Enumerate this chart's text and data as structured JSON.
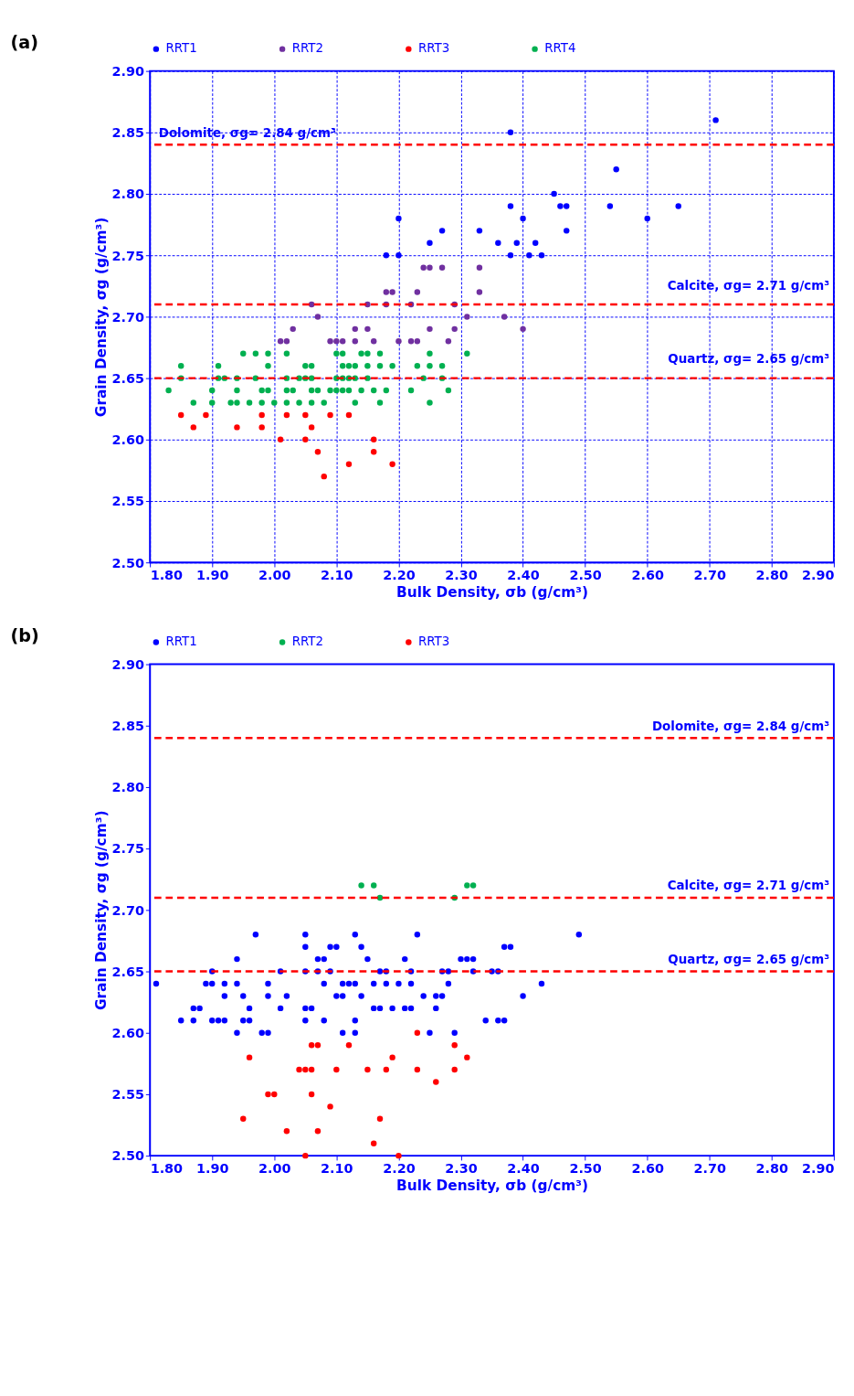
{
  "chart_data": [
    {
      "type": "scatter",
      "title": "(a)",
      "xlabel": "Bulk Density, σb (g/cm³)",
      "ylabel": "Grain Density, σg (g/cm³)",
      "legend": "top",
      "grid": true,
      "marker": "circle",
      "xlim": [
        1.8,
        2.9
      ],
      "ylim": [
        2.5,
        2.9
      ],
      "xticks": [
        {
          "value": 1.8,
          "label": "1.80"
        },
        {
          "value": 1.9,
          "label": "1.90"
        },
        {
          "value": 2.0,
          "label": "2.00"
        },
        {
          "value": 2.1,
          "label": "2.10"
        },
        {
          "value": 2.2,
          "label": "2.20"
        },
        {
          "value": 2.3,
          "label": "2.30"
        },
        {
          "value": 2.4,
          "label": "2.40"
        },
        {
          "value": 2.5,
          "label": "2.50"
        },
        {
          "value": 2.6,
          "label": "2.60"
        },
        {
          "value": 2.7,
          "label": "2.70"
        },
        {
          "value": 2.8,
          "label": "2.80"
        },
        {
          "value": 2.9,
          "label": "2.90"
        }
      ],
      "yticks": [
        {
          "value": 2.5,
          "label": "2.50"
        },
        2.55,
        {
          "value": 2.6,
          "label": "2.60"
        },
        2.65,
        {
          "value": 2.7,
          "label": "2.70"
        },
        2.75,
        {
          "value": 2.8,
          "label": "2.80"
        },
        2.85,
        {
          "value": 2.9,
          "label": "2.90"
        }
      ],
      "ref_lines": [
        {
          "axis": "y",
          "value": 2.84,
          "label": "Dolomite, σg= 2.84 g/cm³",
          "color": "#ff0000",
          "line_style": "dashed"
        },
        {
          "axis": "y",
          "value": 2.71,
          "label": "Calcite,  σg= 2.71 g/cm³",
          "color": "#ff0000",
          "line_style": "dashed"
        },
        {
          "axis": "y",
          "value": 2.65,
          "label": "Quartz,  σg= 2.65 g/cm³",
          "color": "#ff0000",
          "line_style": "dashed"
        }
      ],
      "series": [
        {
          "name": "RRT1",
          "color": "#0000ff",
          "x": [
            2.71,
            2.38,
            2.55,
            2.45,
            2.46,
            2.47,
            2.54,
            2.65,
            2.38,
            2.2,
            2.4,
            2.6,
            2.27,
            2.33,
            2.47,
            2.25,
            2.36,
            2.39,
            2.42,
            2.18,
            2.2,
            2.38,
            2.41,
            2.43
          ],
          "values": [
            2.86,
            2.85,
            2.82,
            2.8,
            2.79,
            2.79,
            2.79,
            2.79,
            2.79,
            2.78,
            2.78,
            2.78,
            2.77,
            2.77,
            2.77,
            2.76,
            2.76,
            2.76,
            2.76,
            2.75,
            2.75,
            2.75,
            2.75,
            2.75
          ]
        },
        {
          "name": "RRT2",
          "color": "#7030a0",
          "x": [
            2.24,
            2.25,
            2.27,
            2.33,
            2.33,
            2.18,
            2.19,
            2.23,
            2.06,
            2.15,
            2.18,
            2.22,
            2.29,
            2.07,
            2.31,
            2.37,
            2.03,
            2.13,
            2.15,
            2.25,
            2.29,
            2.4,
            2.01,
            2.02,
            2.09,
            2.1,
            2.11,
            2.13,
            2.16,
            2.2,
            2.22,
            2.23,
            2.28
          ],
          "values": [
            2.74,
            2.74,
            2.74,
            2.74,
            2.72,
            2.72,
            2.72,
            2.72,
            2.71,
            2.71,
            2.71,
            2.71,
            2.71,
            2.7,
            2.7,
            2.7,
            2.69,
            2.69,
            2.69,
            2.69,
            2.69,
            2.69,
            2.68,
            2.68,
            2.68,
            2.68,
            2.68,
            2.68,
            2.68,
            2.68,
            2.68,
            2.68,
            2.68
          ]
        },
        {
          "name": "RRT3",
          "color": "#ff0000",
          "x": [
            1.85,
            1.89,
            1.98,
            2.02,
            2.05,
            2.09,
            2.12,
            1.87,
            1.94,
            1.98,
            2.06,
            2.01,
            2.05,
            2.16,
            2.07,
            2.16,
            2.12,
            2.19,
            2.08
          ],
          "values": [
            2.62,
            2.62,
            2.62,
            2.62,
            2.62,
            2.62,
            2.62,
            2.61,
            2.61,
            2.61,
            2.61,
            2.6,
            2.6,
            2.6,
            2.59,
            2.59,
            2.58,
            2.58,
            2.57
          ]
        },
        {
          "name": "RRT4",
          "color": "#00b050",
          "x": [
            1.95,
            1.97,
            1.99,
            2.02,
            2.1,
            2.11,
            2.14,
            2.15,
            2.17,
            2.25,
            2.31,
            1.85,
            1.91,
            1.99,
            2.05,
            2.06,
            2.11,
            2.12,
            2.13,
            2.15,
            2.17,
            2.19,
            2.23,
            2.25,
            2.27,
            1.85,
            1.91,
            1.92,
            1.94,
            1.97,
            2.02,
            2.04,
            2.05,
            2.06,
            2.1,
            2.11,
            2.12,
            2.13,
            2.15,
            2.24,
            2.27,
            1.83,
            1.9,
            1.94,
            1.98,
            1.99,
            2.02,
            2.03,
            2.06,
            2.07,
            2.09,
            2.1,
            2.11,
            2.12,
            2.14,
            2.16,
            2.18,
            2.22,
            2.28,
            1.87,
            1.9,
            1.93,
            1.94,
            1.96,
            1.98,
            2.0,
            2.02,
            2.04,
            2.06,
            2.08,
            2.13,
            2.17,
            2.25
          ],
          "values": [
            2.67,
            2.67,
            2.67,
            2.67,
            2.67,
            2.67,
            2.67,
            2.67,
            2.67,
            2.67,
            2.67,
            2.66,
            2.66,
            2.66,
            2.66,
            2.66,
            2.66,
            2.66,
            2.66,
            2.66,
            2.66,
            2.66,
            2.66,
            2.66,
            2.66,
            2.65,
            2.65,
            2.65,
            2.65,
            2.65,
            2.65,
            2.65,
            2.65,
            2.65,
            2.65,
            2.65,
            2.65,
            2.65,
            2.65,
            2.65,
            2.65,
            2.64,
            2.64,
            2.64,
            2.64,
            2.64,
            2.64,
            2.64,
            2.64,
            2.64,
            2.64,
            2.64,
            2.64,
            2.64,
            2.64,
            2.64,
            2.64,
            2.64,
            2.64,
            2.63,
            2.63,
            2.63,
            2.63,
            2.63,
            2.63,
            2.63,
            2.63,
            2.63,
            2.63,
            2.63,
            2.63,
            2.63,
            2.63
          ]
        }
      ]
    },
    {
      "type": "scatter",
      "title": "(b)",
      "xlabel": "Bulk Density, σb (g/cm³)",
      "ylabel": "Grain Density, σg (g/cm³)",
      "legend": "top",
      "grid": false,
      "marker": "circle",
      "xlim": [
        1.8,
        2.9
      ],
      "ylim": [
        2.5,
        2.9
      ],
      "xticks": [
        {
          "value": 1.8,
          "label": "1.80"
        },
        {
          "value": 1.9,
          "label": "1.90"
        },
        {
          "value": 2.0,
          "label": "2.00"
        },
        {
          "value": 2.1,
          "label": "2.10"
        },
        {
          "value": 2.2,
          "label": "2.20"
        },
        {
          "value": 2.3,
          "label": "2.30"
        },
        {
          "value": 2.4,
          "label": "2.40"
        },
        {
          "value": 2.5,
          "label": "2.50"
        },
        {
          "value": 2.6,
          "label": "2.60"
        },
        {
          "value": 2.7,
          "label": "2.70"
        },
        {
          "value": 2.8,
          "label": "2.80"
        },
        {
          "value": 2.9,
          "label": "2.90"
        }
      ],
      "yticks": [
        {
          "value": 2.5,
          "label": "2.50"
        },
        2.55,
        {
          "value": 2.6,
          "label": "2.60"
        },
        2.65,
        {
          "value": 2.7,
          "label": "2.70"
        },
        2.75,
        {
          "value": 2.8,
          "label": "2.80"
        },
        2.85,
        {
          "value": 2.9,
          "label": "2.90"
        }
      ],
      "ref_lines": [
        {
          "axis": "y",
          "value": 2.84,
          "label": "Dolomite, σg= 2.84 g/cm³",
          "color": "#ff0000",
          "line_style": "dashed"
        },
        {
          "axis": "y",
          "value": 2.71,
          "label": "Calcite,  σg= 2.71 g/cm³",
          "color": "#ff0000",
          "line_style": "dashed"
        },
        {
          "axis": "y",
          "value": 2.65,
          "label": "Quartz,  σg= 2.65 g/cm³",
          "color": "#ff0000",
          "line_style": "dashed"
        }
      ],
      "series": [
        {
          "name": "RRT1",
          "color": "#0000ff",
          "x": [
            1.97,
            2.05,
            2.13,
            2.23,
            2.49,
            2.05,
            2.09,
            2.1,
            2.14,
            2.37,
            2.38,
            1.94,
            2.07,
            2.08,
            2.15,
            2.21,
            2.3,
            2.31,
            2.32,
            1.9,
            2.01,
            2.05,
            2.07,
            2.09,
            2.17,
            2.18,
            2.22,
            2.27,
            2.28,
            2.32,
            2.35,
            2.36,
            1.81,
            1.89,
            1.9,
            1.92,
            1.94,
            1.99,
            2.08,
            2.11,
            2.12,
            2.13,
            2.16,
            2.18,
            2.2,
            2.22,
            2.28,
            2.43,
            1.92,
            1.95,
            1.99,
            2.02,
            2.1,
            2.11,
            2.14,
            2.24,
            2.26,
            2.27,
            2.4,
            1.87,
            1.88,
            1.96,
            2.01,
            2.05,
            2.06,
            2.16,
            2.17,
            2.19,
            2.21,
            2.22,
            2.26,
            1.85,
            1.87,
            1.9,
            1.91,
            1.92,
            1.95,
            1.96,
            2.05,
            2.08,
            2.13,
            2.34,
            2.36,
            2.37,
            1.94,
            1.98,
            1.99,
            2.11,
            2.13,
            2.25,
            2.29
          ],
          "values": [
            2.68,
            2.68,
            2.68,
            2.68,
            2.68,
            2.67,
            2.67,
            2.67,
            2.67,
            2.67,
            2.67,
            2.66,
            2.66,
            2.66,
            2.66,
            2.66,
            2.66,
            2.66,
            2.66,
            2.65,
            2.65,
            2.65,
            2.65,
            2.65,
            2.65,
            2.65,
            2.65,
            2.65,
            2.65,
            2.65,
            2.65,
            2.65,
            2.64,
            2.64,
            2.64,
            2.64,
            2.64,
            2.64,
            2.64,
            2.64,
            2.64,
            2.64,
            2.64,
            2.64,
            2.64,
            2.64,
            2.64,
            2.64,
            2.63,
            2.63,
            2.63,
            2.63,
            2.63,
            2.63,
            2.63,
            2.63,
            2.63,
            2.63,
            2.63,
            2.62,
            2.62,
            2.62,
            2.62,
            2.62,
            2.62,
            2.62,
            2.62,
            2.62,
            2.62,
            2.62,
            2.62,
            2.61,
            2.61,
            2.61,
            2.61,
            2.61,
            2.61,
            2.61,
            2.61,
            2.61,
            2.61,
            2.61,
            2.61,
            2.61,
            2.6,
            2.6,
            2.6,
            2.6,
            2.6,
            2.6,
            2.6
          ]
        },
        {
          "name": "RRT2",
          "color": "#00b050",
          "x": [
            2.14,
            2.16,
            2.31,
            2.32,
            2.17,
            2.29
          ],
          "values": [
            2.72,
            2.72,
            2.72,
            2.72,
            2.71,
            2.71
          ]
        },
        {
          "name": "RRT3",
          "color": "#ff0000",
          "x": [
            2.23,
            2.06,
            2.07,
            2.12,
            2.29,
            1.96,
            2.19,
            2.31,
            2.04,
            2.05,
            2.06,
            2.1,
            2.15,
            2.18,
            2.23,
            2.29,
            2.26,
            1.99,
            2.0,
            2.06,
            2.09,
            1.95,
            2.17,
            2.02,
            2.07,
            2.16,
            2.05,
            2.2
          ],
          "values": [
            2.6,
            2.59,
            2.59,
            2.59,
            2.59,
            2.58,
            2.58,
            2.58,
            2.57,
            2.57,
            2.57,
            2.57,
            2.57,
            2.57,
            2.57,
            2.57,
            2.56,
            2.55,
            2.55,
            2.55,
            2.54,
            2.53,
            2.53,
            2.52,
            2.52,
            2.51,
            2.5,
            2.5
          ]
        }
      ]
    }
  ]
}
